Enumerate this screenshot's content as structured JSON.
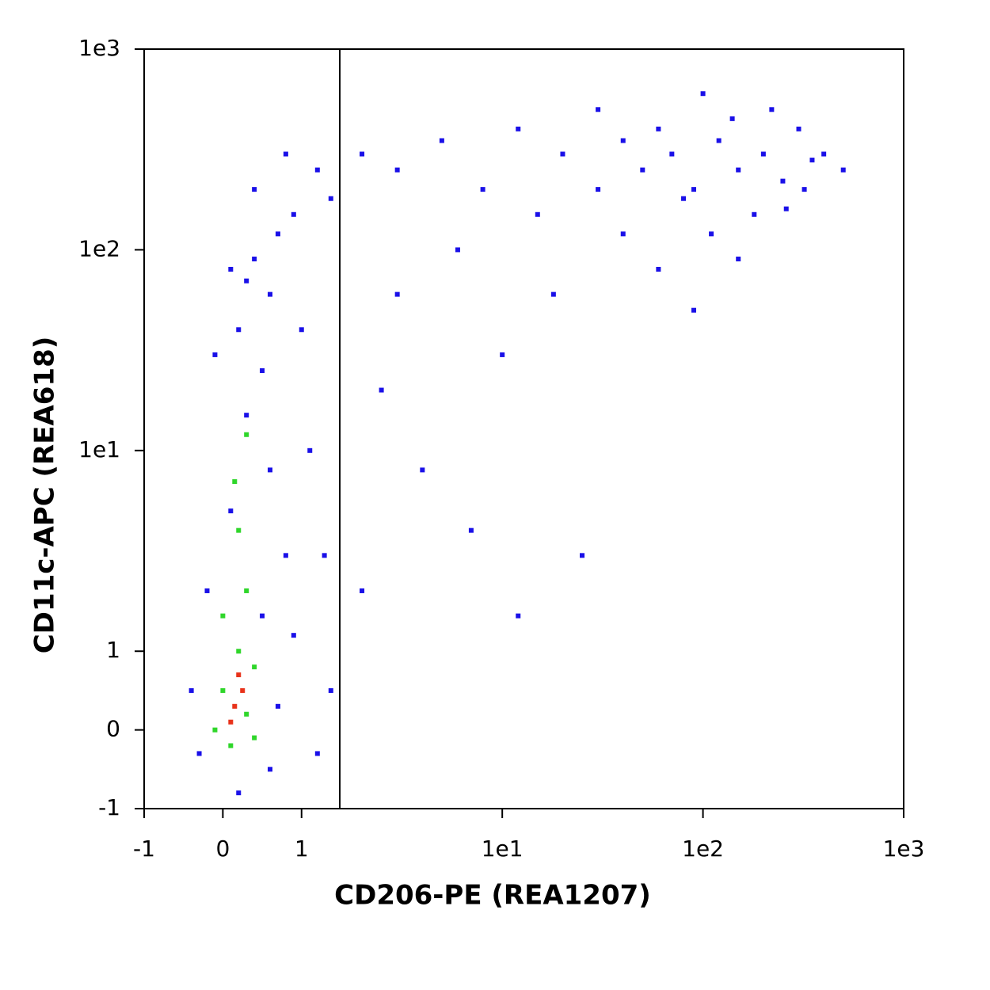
{
  "chart_data": {
    "type": "scatter",
    "xlabel": "CD206-PE (REA1207)",
    "ylabel": "CD11c-APC (REA618)",
    "xscale": "biexponential",
    "yscale": "biexponential",
    "xlim": [
      -1,
      1000
    ],
    "ylim": [
      -1,
      1000
    ],
    "xticks": [
      -1,
      0,
      1,
      {
        "value": 10,
        "label": "1e1"
      },
      {
        "value": 100,
        "label": "1e2"
      },
      {
        "value": 1000,
        "label": "1e3"
      }
    ],
    "yticks": [
      -1,
      0,
      1,
      {
        "value": 10,
        "label": "1e1"
      },
      {
        "value": 100,
        "label": "1e2"
      },
      {
        "value": 1000,
        "label": "1e3"
      }
    ],
    "gate": {
      "x": 1.55
    },
    "series": [
      {
        "color": "#1a10e8",
        "x": [
          0.2,
          -0.3,
          0.6,
          -0.4,
          0.7,
          0.5,
          -0.2,
          0.8,
          0.1,
          0.6,
          0.3,
          0.5,
          0.2,
          0.6,
          0.4,
          0.9,
          1.2,
          0.7,
          0.3,
          1.0,
          1.1,
          1.3,
          1.4,
          1.2,
          0.9,
          -0.1,
          0.1,
          0.4,
          0.8,
          1.4,
          2,
          3,
          5,
          8,
          12,
          20,
          30,
          15,
          6,
          3,
          2.5,
          4,
          10,
          18,
          40,
          60,
          90,
          150,
          7,
          2,
          12,
          25,
          50,
          70,
          90,
          120,
          150,
          200,
          250,
          300,
          350,
          400,
          180,
          110,
          80,
          260,
          320,
          140,
          220,
          60,
          100,
          500,
          30,
          40
        ],
        "values": [
          -0.8,
          -0.3,
          -0.5,
          0.5,
          0.3,
          1.5,
          2,
          3,
          5,
          8,
          15,
          25,
          40,
          60,
          90,
          150,
          250,
          120,
          70,
          40,
          10,
          3,
          0.5,
          -0.3,
          1.2,
          30,
          80,
          200,
          300,
          180,
          300,
          250,
          350,
          200,
          400,
          300,
          500,
          150,
          100,
          60,
          20,
          8,
          30,
          60,
          120,
          80,
          50,
          90,
          4,
          2,
          1.5,
          3,
          250,
          300,
          200,
          350,
          250,
          300,
          220,
          400,
          280,
          300,
          150,
          120,
          180,
          160,
          200,
          450,
          500,
          400,
          600,
          250,
          200,
          350
        ]
      },
      {
        "color": "#2fd62a",
        "x": [
          0,
          0.3,
          0.1,
          0.2,
          0.4,
          -0.1,
          0.3,
          0.2,
          0.15,
          0.3,
          0,
          0.4
        ],
        "values": [
          0.5,
          0.2,
          -0.2,
          1,
          0.8,
          0,
          2,
          4,
          7,
          12,
          1.5,
          -0.1
        ]
      },
      {
        "color": "#e8321a",
        "x": [
          0.15,
          0.25,
          0.1,
          0.2
        ],
        "values": [
          0.3,
          0.5,
          0.1,
          0.7
        ]
      }
    ]
  }
}
